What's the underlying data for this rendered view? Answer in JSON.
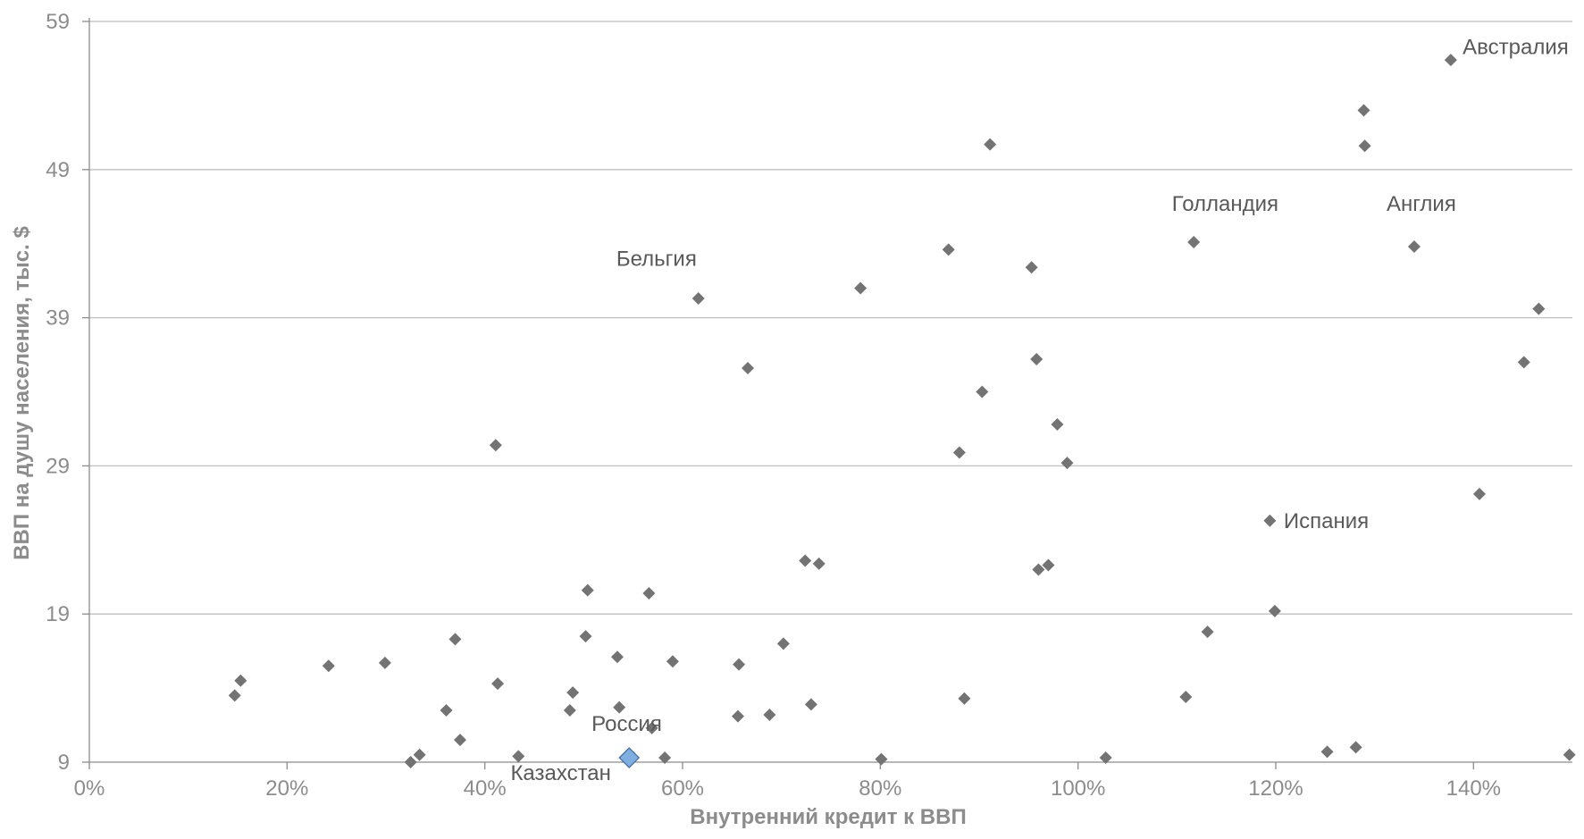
{
  "chart_data": {
    "type": "scatter",
    "title": "",
    "xlabel": "Внутренний кредит к ВВП",
    "ylabel": "ВВП на душу населения, тыс. $",
    "xlim": [
      0,
      150
    ],
    "ylim": [
      9,
      59
    ],
    "x_ticks": [
      0,
      20,
      40,
      60,
      80,
      100,
      120,
      140
    ],
    "x_tick_labels": [
      "0%",
      "20%",
      "40%",
      "60%",
      "80%",
      "100%",
      "120%",
      "140%"
    ],
    "y_ticks": [
      9,
      19,
      29,
      39,
      49,
      59
    ],
    "y_tick_labels": [
      "9",
      "19",
      "29",
      "39",
      "49",
      "59"
    ],
    "grid": "horizontal",
    "legend": "none",
    "colors": {
      "points": "#737373",
      "highlight": "#7faee0",
      "grid": "#bfbfbf",
      "axis": "#8c8c8c"
    },
    "series": [
      {
        "x": [
          14.7,
          15.3,
          24.2,
          29.9,
          32.5,
          33.4,
          36.1,
          37.0,
          37.5,
          41.1,
          41.3,
          43.4,
          48.6,
          48.9,
          50.2,
          50.4,
          53.4,
          53.6,
          56.6,
          56.9,
          58.2,
          59.0,
          61.6,
          65.6,
          65.7,
          66.6,
          68.8,
          70.2,
          72.4,
          73.0,
          73.8,
          78.0,
          80.1,
          86.9,
          88.0,
          88.5,
          90.3,
          91.1,
          95.3,
          95.8,
          96.0,
          97.0,
          97.9,
          98.9,
          102.8,
          110.9,
          111.7,
          113.1,
          119.4,
          119.9,
          125.2,
          128.1,
          128.9,
          129.0,
          134.0,
          137.7,
          140.6,
          145.1,
          146.6,
          149.7
        ],
        "y": [
          13.5,
          14.5,
          15.5,
          15.7,
          9.0,
          9.5,
          12.5,
          17.3,
          10.5,
          30.4,
          14.3,
          9.4,
          12.5,
          13.7,
          17.5,
          20.6,
          16.1,
          12.7,
          20.4,
          11.3,
          9.3,
          15.8,
          40.3,
          12.1,
          15.6,
          35.6,
          12.2,
          17.0,
          22.6,
          12.9,
          22.4,
          41.0,
          9.2,
          43.6,
          29.9,
          13.3,
          34.0,
          50.7,
          42.4,
          36.2,
          22.0,
          22.3,
          31.8,
          29.2,
          9.3,
          13.4,
          44.1,
          17.8,
          25.3,
          19.2,
          9.7,
          10.0,
          53.0,
          50.6,
          43.8,
          56.4,
          27.1,
          36.0,
          39.6,
          9.5
        ]
      },
      {
        "name": "Россия",
        "x": [
          54.6
        ],
        "y": [
          9.3
        ]
      }
    ],
    "annotations": [
      {
        "text": "Австралия",
        "x": 138.9,
        "y": 56.8
      },
      {
        "text": "Голландия",
        "x": 109.5,
        "y": 46.2
      },
      {
        "text": "Англия",
        "x": 131.2,
        "y": 46.2
      },
      {
        "text": "Бельгия",
        "x": 53.3,
        "y": 42.5
      },
      {
        "text": "Испания",
        "x": 120.8,
        "y": 24.8
      },
      {
        "text": "Россия",
        "x": 50.8,
        "y": 11.1
      },
      {
        "text": "Казахстан",
        "x": 42.6,
        "y": 7.8
      }
    ]
  }
}
